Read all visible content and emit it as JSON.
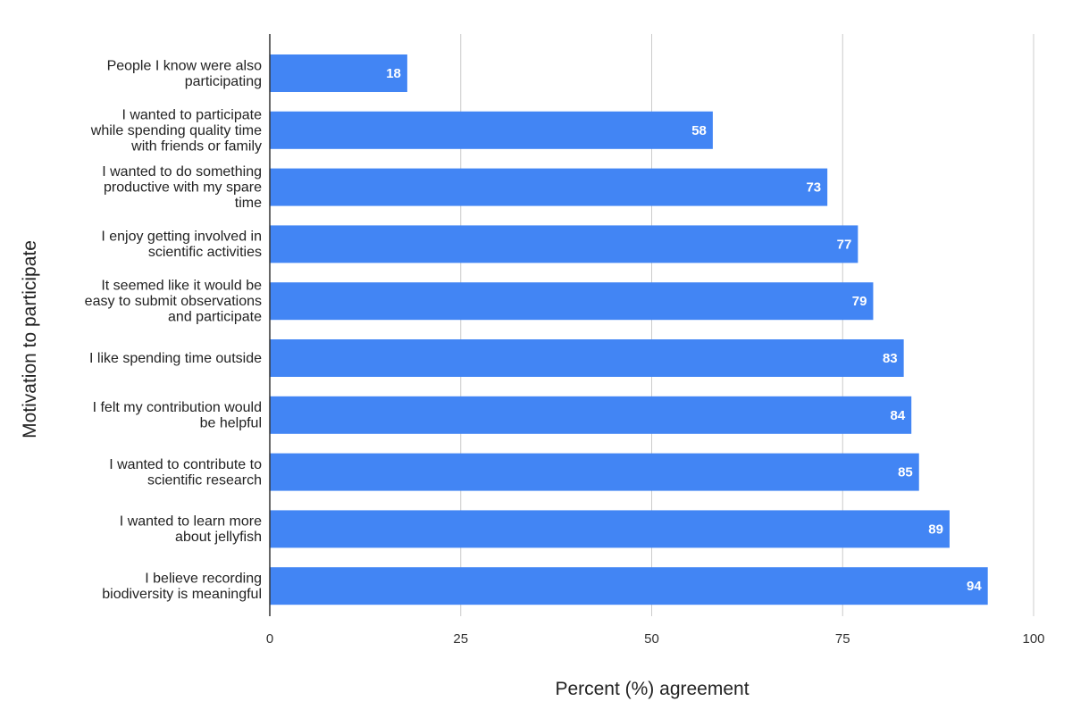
{
  "chart_data": {
    "type": "bar",
    "orientation": "horizontal",
    "title": "",
    "xlabel": "Percent (%) agreement",
    "ylabel": "Motivation to participate",
    "xlim": [
      0,
      100
    ],
    "xticks": [
      0,
      25,
      50,
      75,
      100
    ],
    "grid": true,
    "bar_color": "#4285f4",
    "grid_color": "#cccccc",
    "categories": [
      [
        "People I know were also",
        "participating"
      ],
      [
        "I wanted to participate",
        "while spending quality time",
        "with friends or family"
      ],
      [
        "I wanted to do something",
        "productive with my spare",
        "time"
      ],
      [
        "I enjoy getting involved in",
        "scientific activities"
      ],
      [
        "It seemed like it would be",
        "easy to submit observations",
        "and participate"
      ],
      [
        "I like spending time outside"
      ],
      [
        "I felt my contribution would",
        "be helpful"
      ],
      [
        "I wanted to contribute to",
        "scientific research"
      ],
      [
        "I wanted to learn more",
        "about jellyfish"
      ],
      [
        "I believe recording",
        "biodiversity is meaningful"
      ]
    ],
    "values": [
      18,
      58,
      73,
      77,
      79,
      83,
      84,
      85,
      89,
      94
    ]
  }
}
